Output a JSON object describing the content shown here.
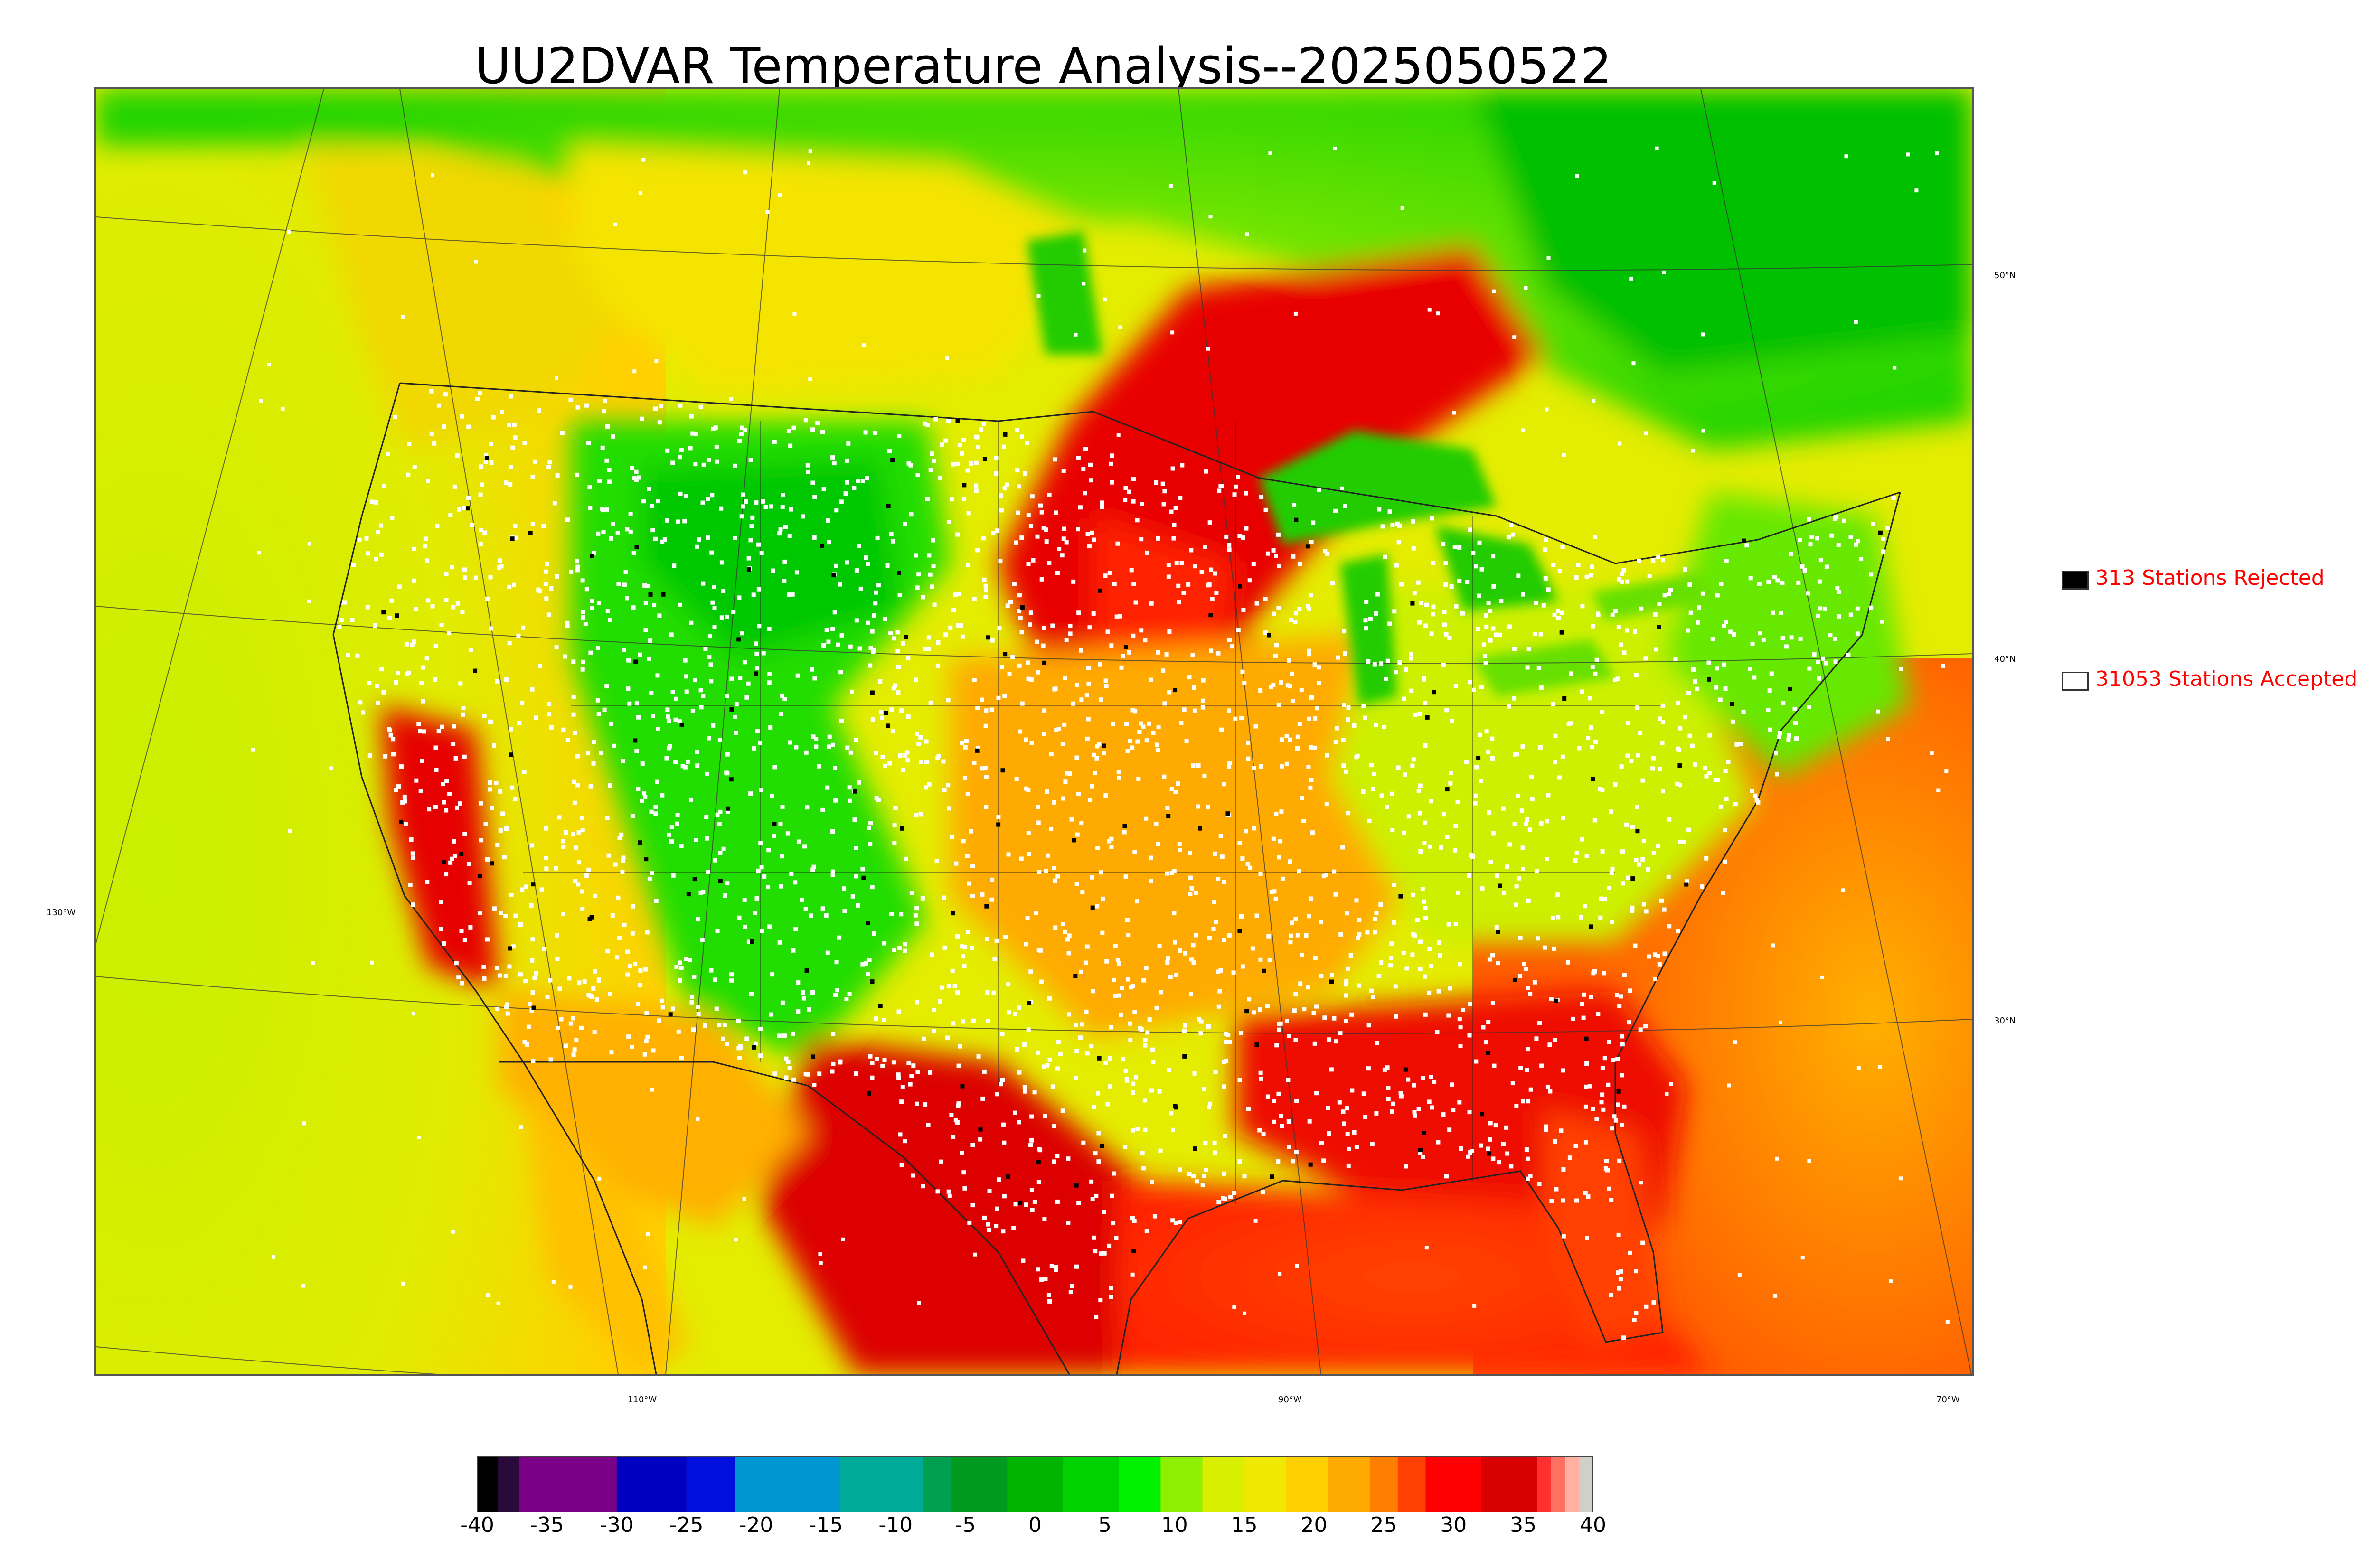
{
  "title": "UU2DVAR Temperature Analysis--2025050522",
  "map": {
    "lat_labels": [
      "50°N",
      "40°N",
      "30°N"
    ],
    "lon_labels": [
      "130°W",
      "110°W",
      "90°W",
      "70°W"
    ],
    "colors": {
      "very_warm": "#e00000",
      "warm": "#ff6a00",
      "mild": "#ffb000",
      "cool": "#d8f000",
      "cold": "#22dd00",
      "green": "#00c800",
      "water_warm": "#ff5500",
      "pacific": "#c8f000"
    }
  },
  "legend": {
    "rejected": {
      "label": "313 Stations Rejected",
      "swatch_color": "#000000"
    },
    "accepted": {
      "label": "31053 Stations Accepted",
      "swatch_color": "#ffffff"
    }
  },
  "colorbar": {
    "ticks": [
      "-40",
      "-35",
      "-30",
      "-25",
      "-20",
      "-15",
      "-10",
      "-5",
      "0",
      "5",
      "10",
      "15",
      "20",
      "25",
      "30",
      "35",
      "40"
    ],
    "range": [
      -40,
      40
    ],
    "stops": [
      {
        "from": -40,
        "to": -38.5,
        "color": "#000000"
      },
      {
        "from": -38.5,
        "to": -37,
        "color": "#2a0a3a"
      },
      {
        "from": -37,
        "to": -30,
        "color": "#7a0088"
      },
      {
        "from": -30,
        "to": -25,
        "color": "#0000c0"
      },
      {
        "from": -25,
        "to": -21.5,
        "color": "#0010dd"
      },
      {
        "from": -21.5,
        "to": -14,
        "color": "#0096d2"
      },
      {
        "from": -14,
        "to": -8,
        "color": "#00aa99"
      },
      {
        "from": -8,
        "to": -6,
        "color": "#00a050"
      },
      {
        "from": -6,
        "to": -2,
        "color": "#009a20"
      },
      {
        "from": -2,
        "to": 2,
        "color": "#00b400"
      },
      {
        "from": 2,
        "to": 6,
        "color": "#00d200"
      },
      {
        "from": 6,
        "to": 9,
        "color": "#00f000"
      },
      {
        "from": 9,
        "to": 12,
        "color": "#8ef000"
      },
      {
        "from": 12,
        "to": 15,
        "color": "#d8f000"
      },
      {
        "from": 15,
        "to": 18,
        "color": "#f0e800"
      },
      {
        "from": 18,
        "to": 21,
        "color": "#ffd000"
      },
      {
        "from": 21,
        "to": 24,
        "color": "#ffaa00"
      },
      {
        "from": 24,
        "to": 26,
        "color": "#ff8000"
      },
      {
        "from": 26,
        "to": 28,
        "color": "#ff4000"
      },
      {
        "from": 28,
        "to": 32,
        "color": "#ff0000"
      },
      {
        "from": 32,
        "to": 36,
        "color": "#d80000"
      },
      {
        "from": 36,
        "to": 37,
        "color": "#ff3030"
      },
      {
        "from": 37,
        "to": 38,
        "color": "#ff7060"
      },
      {
        "from": 38,
        "to": 39,
        "color": "#ffb0a0"
      },
      {
        "from": 39,
        "to": 40,
        "color": "#d0d0c8"
      }
    ]
  }
}
